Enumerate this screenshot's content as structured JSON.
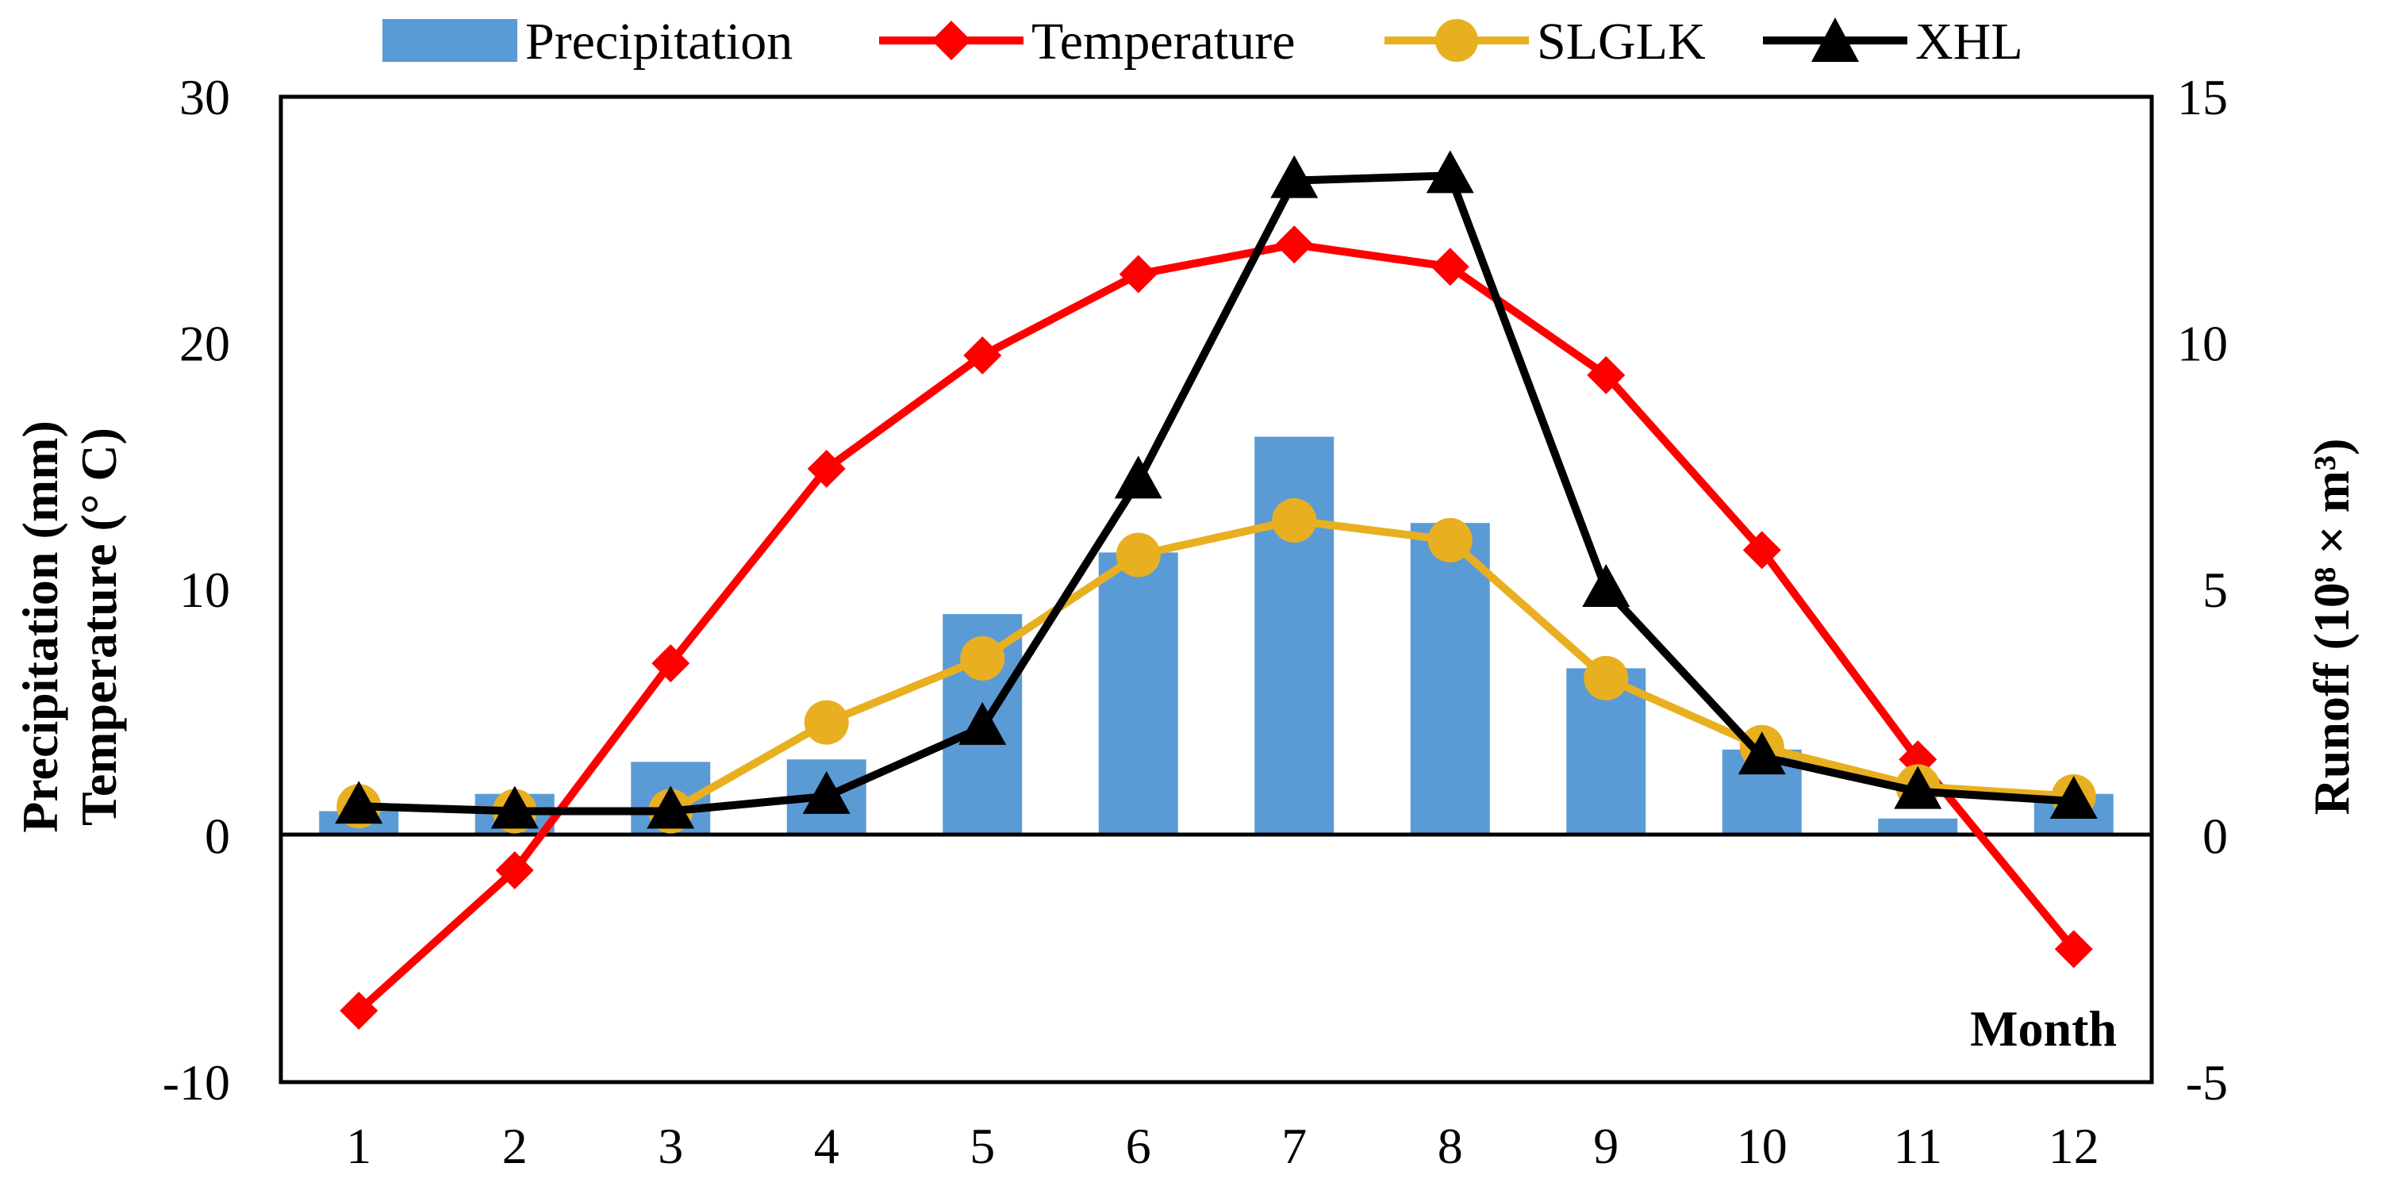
{
  "chart_data": {
    "type": "bar+line",
    "categories": [
      "1",
      "2",
      "3",
      "4",
      "5",
      "6",
      "7",
      "8",
      "9",
      "10",
      "11",
      "12"
    ],
    "left_axis": {
      "label_line1": "Precipitation (mm)",
      "label_line2": "Temperature (°  C)",
      "ylim": [
        -10,
        30
      ],
      "ticks": [
        "-10",
        "0",
        "10",
        "20",
        "30"
      ]
    },
    "right_axis": {
      "label": "Runoff (10⁸ × m³)",
      "ylim": [
        -5,
        15
      ],
      "ticks": [
        "-5",
        "0",
        "5",
        "10",
        "15"
      ]
    },
    "x_axis_label": "Month",
    "legend_position": "top",
    "colors": {
      "precipitation": "#5B9BD5",
      "temperature": "#FF0000",
      "slglk": "#E8B020",
      "xhl": "#000000"
    },
    "series": [
      {
        "name": "Precipitation",
        "type": "bar",
        "axis": "left",
        "values": [
          1.0,
          1.7,
          3.0,
          3.1,
          9.0,
          11.5,
          16.2,
          12.7,
          6.8,
          3.5,
          0.7,
          1.7
        ]
      },
      {
        "name": "Temperature",
        "type": "line",
        "marker": "diamond",
        "axis": "left",
        "values": [
          -7.1,
          -1.4,
          7.0,
          14.9,
          19.5,
          22.8,
          24.0,
          23.1,
          18.7,
          11.6,
          3.1,
          -4.6
        ]
      },
      {
        "name": "SLGLK",
        "type": "line",
        "marker": "circle",
        "axis": "right",
        "values": [
          0.6,
          0.5,
          0.5,
          2.3,
          3.6,
          5.7,
          6.4,
          6.0,
          3.2,
          1.8,
          1.0,
          0.8
        ]
      },
      {
        "name": "XHL",
        "type": "line",
        "marker": "triangle",
        "axis": "right",
        "values": [
          0.6,
          0.5,
          0.5,
          0.8,
          2.2,
          7.2,
          13.3,
          13.4,
          5.0,
          1.6,
          0.9,
          0.7
        ]
      }
    ]
  }
}
